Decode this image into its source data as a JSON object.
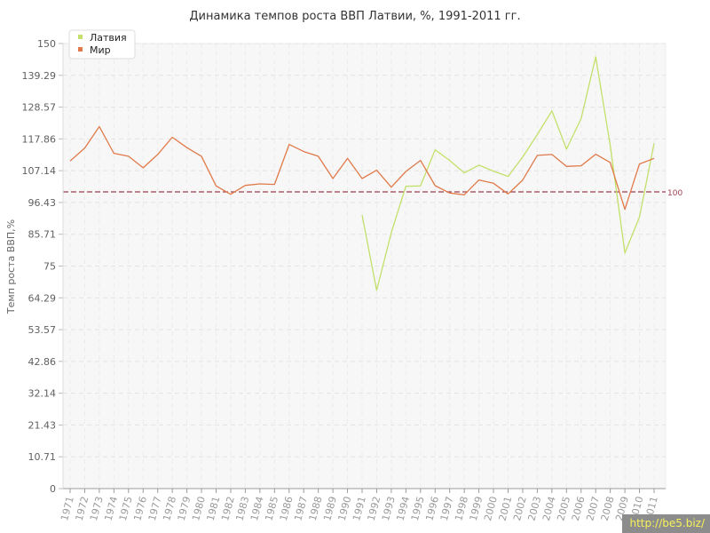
{
  "chart_data": {
    "type": "line",
    "title": "Динамика темпов роста ВВП Латвии, %, 1991-2011 гг.",
    "ylabel": "Темп роста ВВП,%",
    "xlabel": "",
    "ylim": [
      0,
      150
    ],
    "yticks": [
      "0",
      "10.71",
      "21.43",
      "32.14",
      "42.86",
      "53.57",
      "64.29",
      "75",
      "85.71",
      "96.43",
      "107.14",
      "117.86",
      "128.57",
      "139.29",
      "150"
    ],
    "categories": [
      "1971",
      "1972",
      "1973",
      "1974",
      "1975",
      "1976",
      "1977",
      "1978",
      "1979",
      "1980",
      "1981",
      "1982",
      "1983",
      "1984",
      "1985",
      "1986",
      "1987",
      "1988",
      "1989",
      "1990",
      "1991",
      "1992",
      "1993",
      "1994",
      "1995",
      "1996",
      "1997",
      "1998",
      "1999",
      "2000",
      "2001",
      "2002",
      "2003",
      "2004",
      "2005",
      "2006",
      "2007",
      "2008",
      "2009",
      "2010",
      "2011"
    ],
    "series": [
      {
        "name": "Латвия",
        "color": "#c3e06a",
        "values": [
          null,
          null,
          null,
          null,
          null,
          null,
          null,
          null,
          null,
          null,
          null,
          null,
          null,
          null,
          null,
          null,
          null,
          null,
          null,
          null,
          92.2,
          66.8,
          86.3,
          101.9,
          102.0,
          114.2,
          110.6,
          106.4,
          109.0,
          107.0,
          105.2,
          111.8,
          119.3,
          127.3,
          114.4,
          124.7,
          145.5,
          115.6,
          79.4,
          91.5,
          116.4
        ]
      },
      {
        "name": "Мир",
        "color": "#e07a4a",
        "values": [
          110.4,
          114.8,
          122.0,
          113.0,
          112.0,
          108.1,
          112.6,
          118.4,
          114.9,
          112.0,
          102.0,
          99.2,
          102.2,
          102.7,
          102.5,
          116.0,
          113.6,
          112.0,
          104.5,
          111.3,
          104.5,
          107.3,
          101.6,
          106.9,
          110.6,
          102.1,
          99.6,
          99.0,
          104.0,
          102.9,
          99.3,
          104.0,
          112.3,
          112.6,
          108.6,
          108.8,
          112.7,
          109.9,
          94.1,
          109.4,
          111.3
        ]
      }
    ],
    "reference_line": {
      "value": 100,
      "label": "100",
      "color": "#a04050"
    },
    "legend": {
      "placement": "top-left",
      "entries": [
        "Латвия",
        "Мир"
      ]
    },
    "grid": true
  },
  "watermark": "http://be5.biz/"
}
